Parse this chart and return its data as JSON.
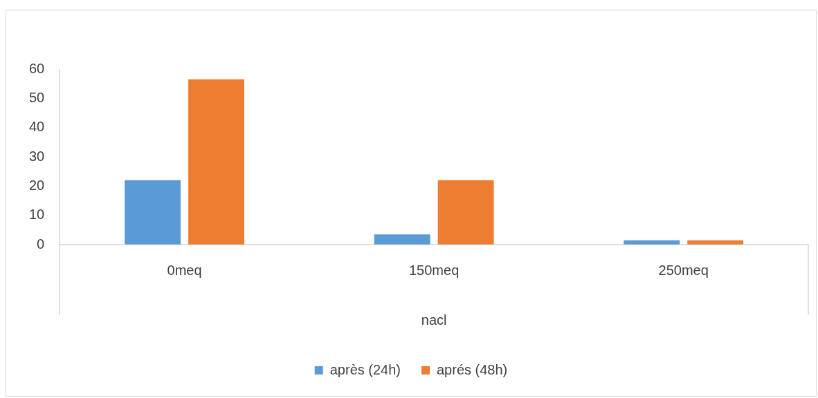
{
  "chart_data": {
    "type": "bar",
    "xlabel": "nacl",
    "categories": [
      "0meq",
      "150meq",
      "250meq"
    ],
    "series": [
      {
        "name": "après (24h)",
        "color": "#5b9bd5",
        "values": [
          22,
          3.5,
          1.5
        ]
      },
      {
        "name": "aprés (48h)",
        "color": "#ed7d31",
        "values": [
          56.5,
          22,
          1.5
        ]
      }
    ],
    "ylim": [
      0,
      60
    ],
    "yticks": [
      0,
      10,
      20,
      30,
      40,
      50,
      60
    ],
    "grid": false,
    "legend": "bottom"
  }
}
